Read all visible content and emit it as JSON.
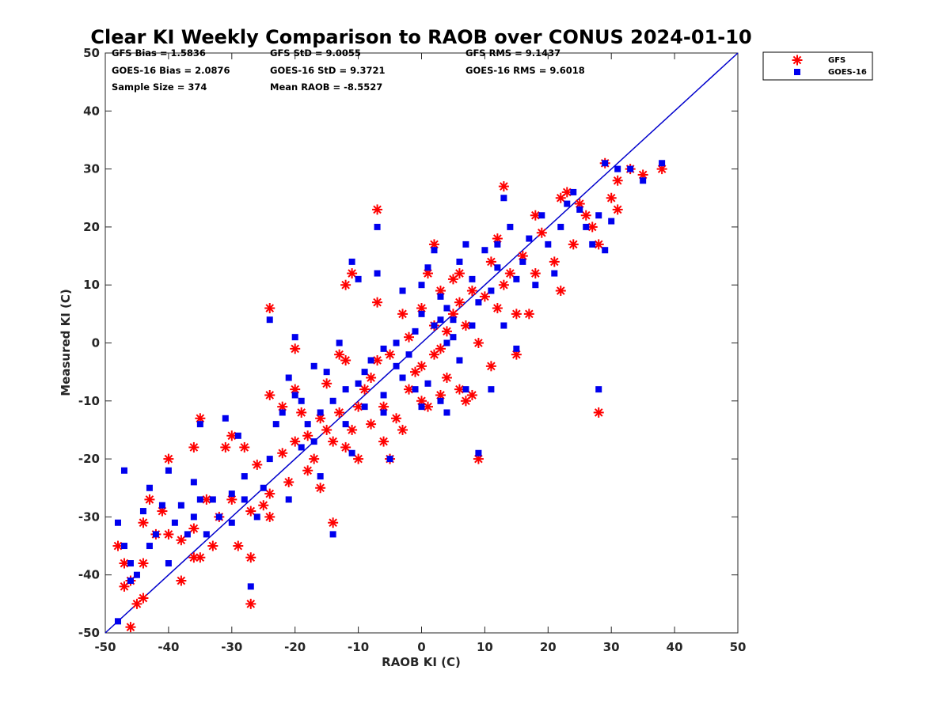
{
  "chart_data": {
    "type": "scatter",
    "title": "Clear KI Weekly Comparison to RAOB over CONUS 2024-01-10",
    "xlabel": "RAOB KI (C)",
    "ylabel": "Measured KI (C)",
    "xlim": [
      -50,
      50
    ],
    "ylim": [
      -50,
      50
    ],
    "xticks": [
      "-50",
      "-40",
      "-30",
      "-20",
      "-10",
      "0",
      "10",
      "20",
      "30",
      "40",
      "50"
    ],
    "yticks": [
      "-50",
      "-40",
      "-30",
      "-20",
      "-10",
      "0",
      "10",
      "20",
      "30",
      "40",
      "50"
    ],
    "reference_line": {
      "label": "1:1 line",
      "color": "#0000cc",
      "from": [
        -50,
        -50
      ],
      "to": [
        50,
        50
      ]
    },
    "stats": {
      "gfs_bias": "GFS Bias = 1.5836",
      "gfs_std": "GFS StD = 9.0055",
      "gfs_rms": "GFS RMS = 9.1437",
      "goes_bias": "GOES-16 Bias = 2.0876",
      "goes_std": "GOES-16 StD = 9.3721",
      "goes_rms": "GOES-16 RMS = 9.6018",
      "sample_size": "Sample Size = 374",
      "mean_raob": "Mean RAOB = -8.5527"
    },
    "legend": {
      "placement": "top-right-outside",
      "entries": [
        "GFS",
        "GOES-16"
      ]
    },
    "series": [
      {
        "name": "GFS",
        "marker": "asterisk",
        "color": "#ff0000",
        "points": [
          [
            -48,
            -35
          ],
          [
            -47,
            -38
          ],
          [
            -47,
            -42
          ],
          [
            -46,
            -41
          ],
          [
            -46,
            -49
          ],
          [
            -45,
            -45
          ],
          [
            -44,
            -44
          ],
          [
            -44,
            -38
          ],
          [
            -43,
            -27
          ],
          [
            -44,
            -31
          ],
          [
            -42,
            -33
          ],
          [
            -41,
            -29
          ],
          [
            -40,
            -33
          ],
          [
            -40,
            -20
          ],
          [
            -38,
            -41
          ],
          [
            -38,
            -34
          ],
          [
            -36,
            -32
          ],
          [
            -36,
            -37
          ],
          [
            -35,
            -37
          ],
          [
            -36,
            -18
          ],
          [
            -35,
            -13
          ],
          [
            -34,
            -27
          ],
          [
            -33,
            -35
          ],
          [
            -32,
            -30
          ],
          [
            -31,
            -18
          ],
          [
            -30,
            -27
          ],
          [
            -30,
            -16
          ],
          [
            -29,
            -35
          ],
          [
            -28,
            -18
          ],
          [
            -27,
            -37
          ],
          [
            -27,
            -45
          ],
          [
            -27,
            -29
          ],
          [
            -26,
            -21
          ],
          [
            -25,
            -28
          ],
          [
            -24,
            -30
          ],
          [
            -24,
            -26
          ],
          [
            -24,
            -9
          ],
          [
            -24,
            6
          ],
          [
            -22,
            -19
          ],
          [
            -21,
            -24
          ],
          [
            -20,
            -17
          ],
          [
            -20,
            -1
          ],
          [
            -19,
            -12
          ],
          [
            -18,
            -22
          ],
          [
            -17,
            -20
          ],
          [
            -16,
            -25
          ],
          [
            -16,
            -13
          ],
          [
            -15,
            -15
          ],
          [
            -15,
            -7
          ],
          [
            -14,
            -31
          ],
          [
            -14,
            -17
          ],
          [
            -13,
            -12
          ],
          [
            -12,
            -3
          ],
          [
            -12,
            -18
          ],
          [
            -11,
            -15
          ],
          [
            -10,
            -20
          ],
          [
            -11,
            12
          ],
          [
            -12,
            10
          ],
          [
            -10,
            -11
          ],
          [
            -9,
            -8
          ],
          [
            -8,
            -14
          ],
          [
            -7,
            -3
          ],
          [
            -7,
            23
          ],
          [
            -7,
            7
          ],
          [
            -6,
            -17
          ],
          [
            -6,
            -11
          ],
          [
            -5,
            -20
          ],
          [
            -5,
            -2
          ],
          [
            -4,
            -13
          ],
          [
            -3,
            -15
          ],
          [
            -3,
            5
          ],
          [
            -2,
            -8
          ],
          [
            -2,
            1
          ],
          [
            -1,
            -5
          ],
          [
            0,
            -10
          ],
          [
            0,
            -4
          ],
          [
            1,
            -11
          ],
          [
            1,
            12
          ],
          [
            2,
            -2
          ],
          [
            2,
            17
          ],
          [
            3,
            -9
          ],
          [
            3,
            9
          ],
          [
            4,
            -6
          ],
          [
            4,
            2
          ],
          [
            5,
            5
          ],
          [
            6,
            -8
          ],
          [
            6,
            7
          ],
          [
            6,
            12
          ],
          [
            7,
            -10
          ],
          [
            7,
            3
          ],
          [
            8,
            -9
          ],
          [
            8,
            9
          ],
          [
            9,
            -20
          ],
          [
            9,
            0
          ],
          [
            10,
            8
          ],
          [
            11,
            -4
          ],
          [
            11,
            14
          ],
          [
            12,
            6
          ],
          [
            12,
            18
          ],
          [
            13,
            27
          ],
          [
            13,
            10
          ],
          [
            14,
            12
          ],
          [
            15,
            -2
          ],
          [
            15,
            5
          ],
          [
            16,
            15
          ],
          [
            17,
            5
          ],
          [
            18,
            12
          ],
          [
            18,
            22
          ],
          [
            19,
            19
          ],
          [
            21,
            14
          ],
          [
            22,
            9
          ],
          [
            22,
            25
          ],
          [
            23,
            26
          ],
          [
            24,
            17
          ],
          [
            25,
            24
          ],
          [
            26,
            22
          ],
          [
            27,
            20
          ],
          [
            28,
            -12
          ],
          [
            28,
            17
          ],
          [
            29,
            31
          ],
          [
            30,
            25
          ],
          [
            31,
            28
          ],
          [
            31,
            23
          ],
          [
            33,
            30
          ],
          [
            35,
            29
          ],
          [
            38,
            30
          ],
          [
            5,
            11
          ],
          [
            -20,
            -8
          ],
          [
            -22,
            -11
          ],
          [
            -18,
            -16
          ],
          [
            -8,
            -6
          ],
          [
            -13,
            -2
          ],
          [
            2,
            3
          ],
          [
            0,
            6
          ],
          [
            3,
            -1
          ]
        ]
      },
      {
        "name": "GOES-16",
        "marker": "square",
        "color": "#0000ee",
        "points": [
          [
            -48,
            -31
          ],
          [
            -48,
            -48
          ],
          [
            -47,
            -35
          ],
          [
            -47,
            -22
          ],
          [
            -46,
            -38
          ],
          [
            -46,
            -41
          ],
          [
            -45,
            -40
          ],
          [
            -44,
            -29
          ],
          [
            -43,
            -25
          ],
          [
            -43,
            -35
          ],
          [
            -42,
            -33
          ],
          [
            -41,
            -28
          ],
          [
            -40,
            -22
          ],
          [
            -40,
            -38
          ],
          [
            -39,
            -31
          ],
          [
            -38,
            -28
          ],
          [
            -37,
            -33
          ],
          [
            -36,
            -30
          ],
          [
            -36,
            -24
          ],
          [
            -35,
            -27
          ],
          [
            -35,
            -14
          ],
          [
            -34,
            -33
          ],
          [
            -33,
            -27
          ],
          [
            -32,
            -30
          ],
          [
            -31,
            -13
          ],
          [
            -30,
            -26
          ],
          [
            -30,
            -31
          ],
          [
            -29,
            -16
          ],
          [
            -28,
            -27
          ],
          [
            -28,
            -23
          ],
          [
            -27,
            -42
          ],
          [
            -26,
            -30
          ],
          [
            -25,
            -25
          ],
          [
            -24,
            -20
          ],
          [
            -24,
            4
          ],
          [
            -23,
            -14
          ],
          [
            -22,
            -12
          ],
          [
            -21,
            -27
          ],
          [
            -20,
            -9
          ],
          [
            -20,
            1
          ],
          [
            -19,
            -18
          ],
          [
            -18,
            -14
          ],
          [
            -17,
            -4
          ],
          [
            -17,
            -17
          ],
          [
            -16,
            -23
          ],
          [
            -16,
            -12
          ],
          [
            -15,
            -5
          ],
          [
            -14,
            -33
          ],
          [
            -14,
            -10
          ],
          [
            -13,
            0
          ],
          [
            -12,
            -14
          ],
          [
            -12,
            -8
          ],
          [
            -11,
            -19
          ],
          [
            -11,
            14
          ],
          [
            -10,
            11
          ],
          [
            -10,
            -7
          ],
          [
            -9,
            -11
          ],
          [
            -8,
            -3
          ],
          [
            -7,
            20
          ],
          [
            -7,
            12
          ],
          [
            -6,
            -1
          ],
          [
            -6,
            -12
          ],
          [
            -5,
            -20
          ],
          [
            -4,
            0
          ],
          [
            -3,
            -6
          ],
          [
            -3,
            9
          ],
          [
            -2,
            -2
          ],
          [
            -1,
            -8
          ],
          [
            0,
            -11
          ],
          [
            0,
            10
          ],
          [
            0,
            5
          ],
          [
            1,
            -7
          ],
          [
            1,
            13
          ],
          [
            2,
            3
          ],
          [
            2,
            16
          ],
          [
            3,
            -10
          ],
          [
            3,
            8
          ],
          [
            4,
            -12
          ],
          [
            4,
            6
          ],
          [
            5,
            1
          ],
          [
            6,
            -3
          ],
          [
            6,
            14
          ],
          [
            7,
            17
          ],
          [
            7,
            -8
          ],
          [
            8,
            3
          ],
          [
            8,
            11
          ],
          [
            9,
            -19
          ],
          [
            9,
            7
          ],
          [
            10,
            16
          ],
          [
            11,
            -8
          ],
          [
            11,
            9
          ],
          [
            12,
            13
          ],
          [
            12,
            17
          ],
          [
            13,
            25
          ],
          [
            13,
            3
          ],
          [
            14,
            20
          ],
          [
            15,
            -1
          ],
          [
            15,
            11
          ],
          [
            16,
            14
          ],
          [
            17,
            18
          ],
          [
            18,
            10
          ],
          [
            19,
            22
          ],
          [
            20,
            17
          ],
          [
            21,
            12
          ],
          [
            22,
            20
          ],
          [
            23,
            24
          ],
          [
            24,
            26
          ],
          [
            25,
            23
          ],
          [
            26,
            20
          ],
          [
            27,
            17
          ],
          [
            28,
            22
          ],
          [
            28,
            -8
          ],
          [
            29,
            16
          ],
          [
            29,
            31
          ],
          [
            30,
            21
          ],
          [
            31,
            30
          ],
          [
            33,
            30
          ],
          [
            35,
            28
          ],
          [
            38,
            31
          ],
          [
            5,
            4
          ],
          [
            -21,
            -6
          ],
          [
            -19,
            -10
          ],
          [
            -9,
            -5
          ],
          [
            -6,
            -9
          ],
          [
            -1,
            2
          ],
          [
            4,
            0
          ],
          [
            3,
            4
          ],
          [
            -4,
            -4
          ]
        ]
      }
    ]
  }
}
